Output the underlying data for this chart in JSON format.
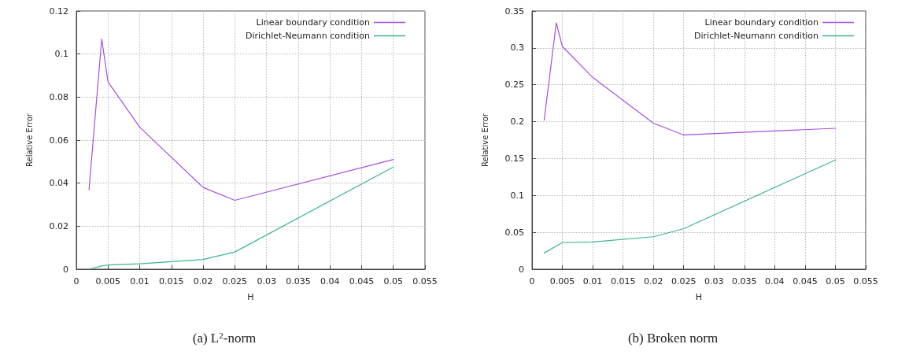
{
  "chart_data": [
    {
      "type": "line",
      "title": "(a) L$^{2}$-norm",
      "xlabel": "H",
      "ylabel": "Relative Error",
      "series": [
        {
          "name": "Linear boundary condition",
          "color": "#a64fe0",
          "x": [
            0.002,
            0.004,
            0.005,
            0.01,
            0.02,
            0.025,
            0.05
          ],
          "values": [
            0.037,
            0.107,
            0.087,
            0.066,
            0.038,
            0.032,
            0.051
          ]
        },
        {
          "name": "Dirichlet-Neumann condition",
          "color": "#3cb58c",
          "x": [
            0.002,
            0.004,
            0.005,
            0.01,
            0.02,
            0.025,
            0.05
          ],
          "values": [
            0.0,
            0.0015,
            0.002,
            0.0025,
            0.0045,
            0.008,
            0.0475
          ]
        }
      ],
      "xlim": [
        0,
        0.055
      ],
      "xticks": [
        0,
        0.005,
        0.01,
        0.015,
        0.02,
        0.025,
        0.03,
        0.035,
        0.04,
        0.045,
        0.05,
        0.055
      ],
      "ylim": [
        0,
        0.12
      ],
      "yticks": [
        0,
        0.02,
        0.04,
        0.06,
        0.08,
        0.1,
        0.12
      ],
      "grid": true,
      "legend": "top right",
      "marker": "none",
      "line_style": "solid"
    },
    {
      "type": "line",
      "title": "(b) Broken norm",
      "xlabel": "H",
      "ylabel": "Relative Error",
      "series": [
        {
          "name": "Linear boundary condition",
          "color": "#a64fe0",
          "x": [
            0.002,
            0.004,
            0.005,
            0.01,
            0.02,
            0.025,
            0.05
          ],
          "values": [
            0.202,
            0.334,
            0.302,
            0.26,
            0.198,
            0.182,
            0.191
          ]
        },
        {
          "name": "Dirichlet-Neumann condition",
          "color": "#3cb58c",
          "x": [
            0.002,
            0.005,
            0.01,
            0.02,
            0.025,
            0.05
          ],
          "values": [
            0.022,
            0.036,
            0.037,
            0.044,
            0.055,
            0.148
          ]
        }
      ],
      "xlim": [
        0,
        0.055
      ],
      "xticks": [
        0,
        0.005,
        0.01,
        0.015,
        0.02,
        0.025,
        0.03,
        0.035,
        0.04,
        0.045,
        0.05,
        0.055
      ],
      "ylim": [
        0,
        0.35
      ],
      "yticks": [
        0,
        0.05,
        0.1,
        0.15,
        0.2,
        0.25,
        0.3,
        0.35
      ],
      "grid": true,
      "legend": "top right",
      "marker": "none",
      "line_style": "solid"
    }
  ]
}
